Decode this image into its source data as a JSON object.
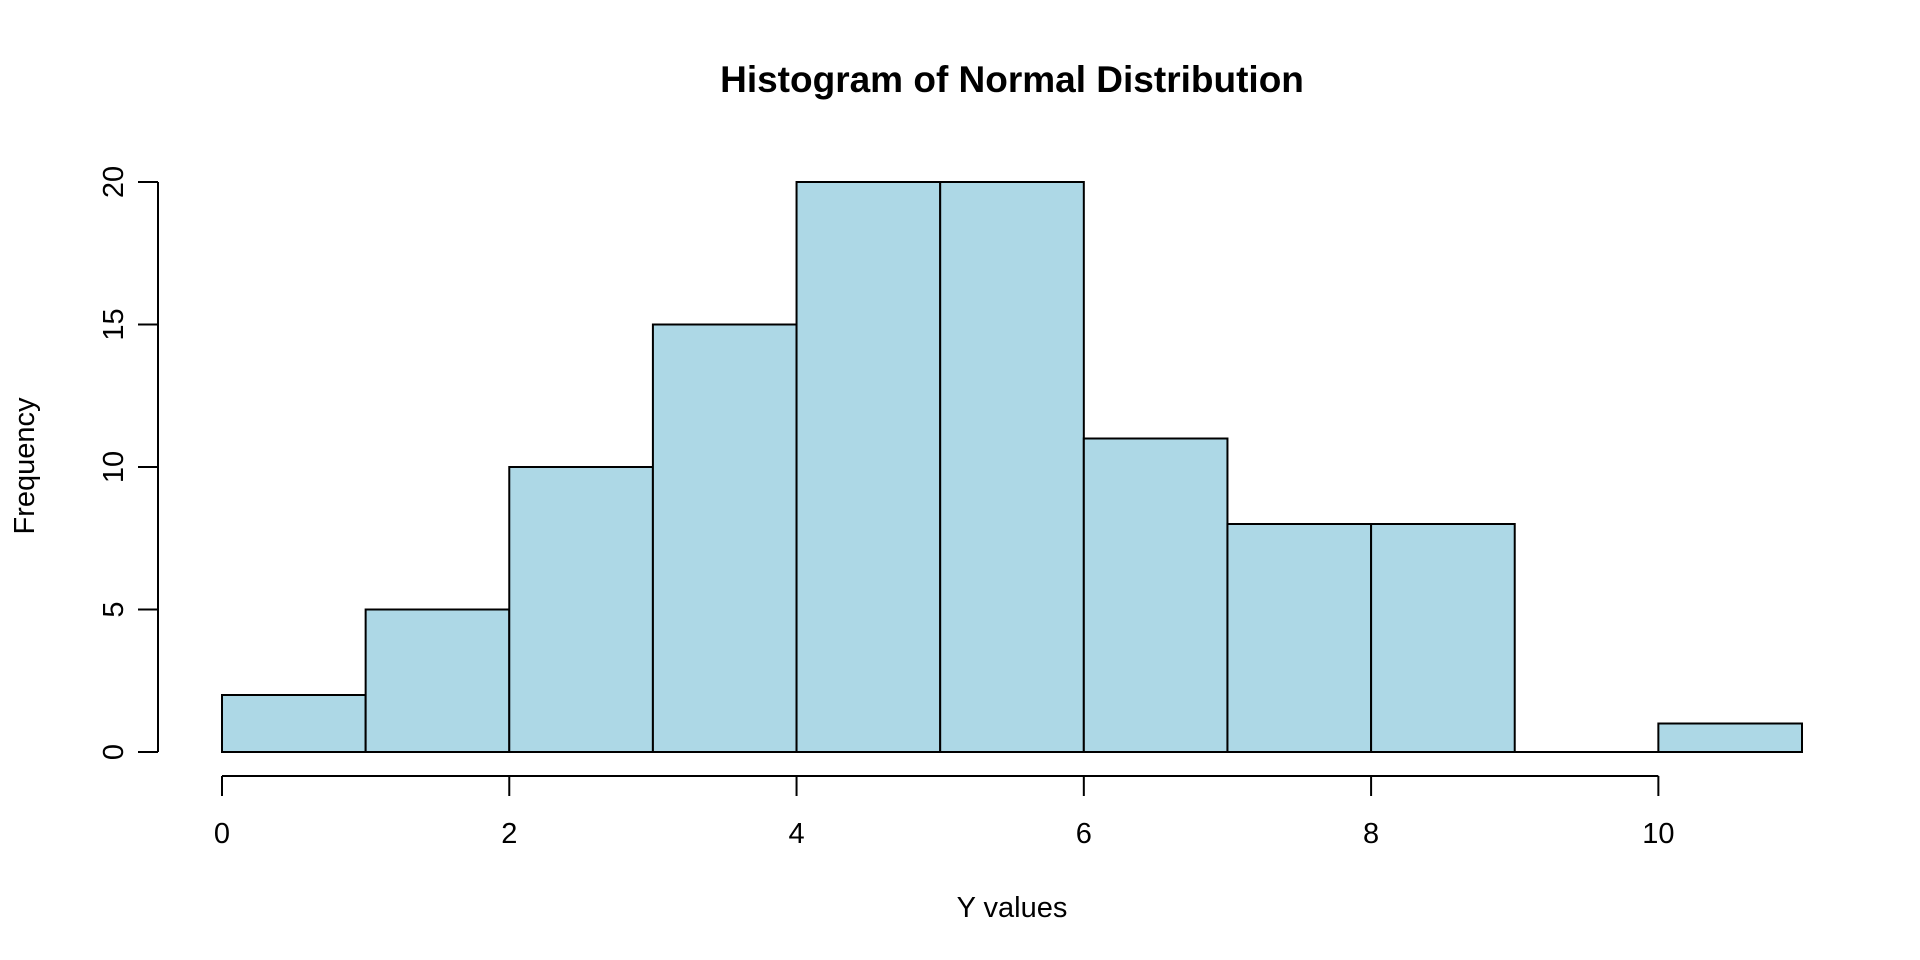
{
  "chart_data": {
    "type": "bar",
    "title": "Histogram of Normal Distribution",
    "xlabel": "Y values",
    "ylabel": "Frequency",
    "bin_edges": [
      0,
      1,
      2,
      3,
      4,
      5,
      6,
      7,
      8,
      9,
      10,
      11
    ],
    "values": [
      2,
      5,
      10,
      15,
      20,
      20,
      11,
      8,
      8,
      0,
      1
    ],
    "x_ticks": [
      0,
      2,
      4,
      6,
      8,
      10
    ],
    "y_ticks": [
      0,
      5,
      10,
      15,
      20
    ],
    "xlim": [
      0,
      11
    ],
    "ylim": [
      0,
      20
    ],
    "grid": false,
    "bar_color": "#add8e6",
    "edge_color": "#000000"
  }
}
